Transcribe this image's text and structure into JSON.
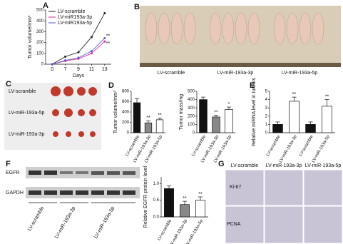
{
  "panel_labels": [
    "A",
    "B",
    "C",
    "D",
    "E",
    "F",
    "G"
  ],
  "chart_data": [
    {
      "type": "line",
      "y_label": "Tumor volume/mm³",
      "x_label": "Days",
      "categories": [
        "0",
        "7",
        "9",
        "11",
        "13"
      ],
      "series": [
        {
          "name": "LV-scramble",
          "color": "#222222",
          "values": [
            0,
            70,
            110,
            250,
            470
          ]
        },
        {
          "name": "LV-miR193a-3p",
          "color": "#d6308a",
          "values": [
            0,
            30,
            50,
            100,
            210
          ]
        },
        {
          "name": "LV-miR193a-5p",
          "color": "#5a5ad6",
          "values": [
            0,
            35,
            60,
            120,
            240
          ]
        }
      ],
      "annotations": [
        "**",
        "**"
      ],
      "ylim": [
        0,
        500
      ],
      "yticks": [
        0,
        100,
        200,
        300,
        400,
        500
      ]
    },
    {
      "type": "bar",
      "y_label": "Tumor volume/mm³",
      "categories": [
        "LV-scramble",
        "LV-miR-193a-3p",
        "LV-miR-193a-5p"
      ],
      "values": [
        580,
        190,
        250
      ],
      "errors": [
        80,
        40,
        30
      ],
      "colors": [
        "#111111",
        "#888888",
        "#ffffff"
      ],
      "significance": [
        null,
        "**",
        "**"
      ],
      "ylim": [
        0,
        800
      ],
      "yticks": [
        0,
        200,
        400,
        600,
        800
      ]
    },
    {
      "type": "bar",
      "y_label": "Tumor mass/mg",
      "categories": [
        "LV-scramble",
        "LV-miR-193a-3p",
        "LV-miR-193a-5p"
      ],
      "values": [
        400,
        190,
        280
      ],
      "errors": [
        30,
        20,
        30
      ],
      "colors": [
        "#111111",
        "#888888",
        "#ffffff"
      ],
      "significance": [
        null,
        "**",
        "*"
      ],
      "ylim": [
        0,
        500
      ],
      "yticks": [
        0,
        100,
        200,
        300,
        400,
        500
      ]
    },
    {
      "type": "bar",
      "y_label": "Relative miRNA level in tumors",
      "categories": [
        "LV-scramble",
        "LV-miR-193a-3p",
        "LV-scramble",
        "LV-miR-193a-5p"
      ],
      "values": [
        1,
        3.8,
        1,
        3.2
      ],
      "errors": [
        0.3,
        0.5,
        0.3,
        0.8
      ],
      "colors": [
        "#111111",
        "#ffffff",
        "#111111",
        "#ffffff"
      ],
      "significance": [
        null,
        "**",
        null,
        "**"
      ],
      "ylim": [
        0,
        5
      ],
      "yticks": [
        0,
        1,
        2,
        3,
        4,
        5
      ]
    },
    {
      "type": "bar",
      "y_label": "Relative EGFR protein level",
      "categories": [
        "LV-scramble",
        "LV-miR-193a-3p",
        "LV-miR-193a-5p"
      ],
      "values": [
        0.85,
        0.37,
        0.5
      ],
      "errors": [
        0.08,
        0.1,
        0.1
      ],
      "colors": [
        "#111111",
        "#888888",
        "#ffffff"
      ],
      "significance": [
        null,
        "**",
        "**"
      ],
      "ylim": [
        0,
        1.2
      ],
      "yticks": [
        {
          "value": 0,
          "label": "0.0"
        },
        {
          "value": 0.5,
          "label": "0.5"
        },
        {
          "value": 1,
          "label": "1.0"
        }
      ]
    }
  ],
  "mice_photo": {
    "labels": [
      "LV-scramble",
      "LV-miR-193a-3p",
      "LV-miR-193a-5p"
    ]
  },
  "tumor_photo": {
    "labels": [
      "LV-scramble",
      "LV-miR-193a-5p",
      "LV-miR-193a-3p"
    ]
  },
  "western_blot": {
    "bands": [
      "EGFR",
      "GAPDH"
    ],
    "lanes": [
      "LV-scramble",
      "LV-miR-193a-3p",
      "LV-miR-193a-5p"
    ]
  },
  "ihc": {
    "columns": [
      "LV-scramble",
      "LV-miR-193a-3p",
      "LV-miR-193a-5p"
    ],
    "rows": [
      "Ki-67",
      "PCNA"
    ]
  }
}
